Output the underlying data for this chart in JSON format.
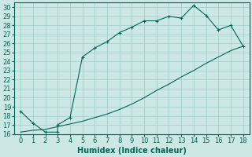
{
  "xlabel": "Humidex (Indice chaleur)",
  "background_color": "#cbe8e4",
  "grid_color": "#a0ccc8",
  "line_color": "#006655",
  "xlim": [
    -0.5,
    18.5
  ],
  "ylim": [
    16,
    30.5
  ],
  "xticks": [
    0,
    1,
    2,
    3,
    4,
    5,
    6,
    7,
    8,
    9,
    10,
    11,
    12,
    13,
    14,
    15,
    16,
    17,
    18
  ],
  "yticks": [
    16,
    17,
    18,
    19,
    20,
    21,
    22,
    23,
    24,
    25,
    26,
    27,
    28,
    29,
    30
  ],
  "curve1_x": [
    0,
    1,
    2,
    3,
    3,
    4,
    5,
    6,
    7,
    8,
    9,
    10,
    11,
    12,
    13,
    14,
    15,
    16,
    17,
    18
  ],
  "curve1_y": [
    18.5,
    17.2,
    16.2,
    16.2,
    17.0,
    17.8,
    24.5,
    25.5,
    26.2,
    27.2,
    27.8,
    28.5,
    28.5,
    29.0,
    28.8,
    30.2,
    29.1,
    27.5,
    28.0,
    25.7
  ],
  "curve2_x": [
    0,
    1,
    2,
    3,
    4,
    5,
    6,
    7,
    8,
    9,
    10,
    11,
    12,
    13,
    14,
    15,
    16,
    17,
    18
  ],
  "curve2_y": [
    16.2,
    16.4,
    16.5,
    16.8,
    17.1,
    17.4,
    17.8,
    18.2,
    18.7,
    19.3,
    20.0,
    20.8,
    21.5,
    22.3,
    23.0,
    23.8,
    24.5,
    25.2,
    25.7
  ],
  "fontsize_xlabel": 7,
  "fontsize_ticks": 6
}
